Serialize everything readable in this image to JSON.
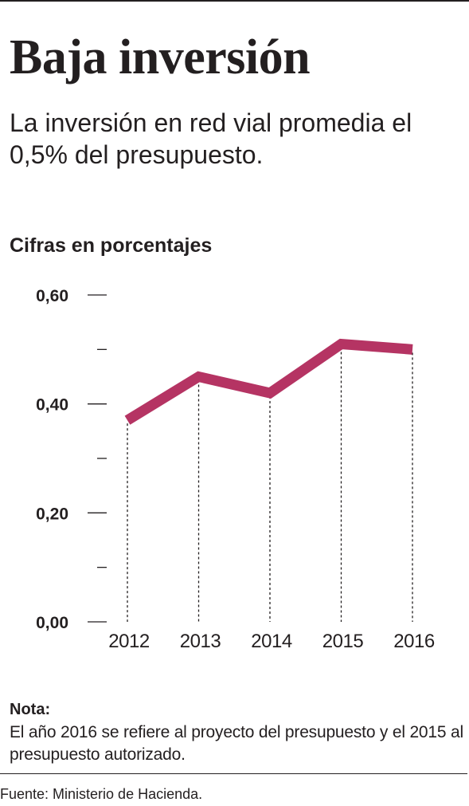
{
  "header": {
    "title": "Baja inversión",
    "subtitle": "La inversión en red vial promedia el 0,5% del presupuesto.",
    "units_label": "Cifras en porcentajes"
  },
  "chart_data": {
    "type": "line",
    "x": [
      "2012",
      "2013",
      "2014",
      "2015",
      "2016"
    ],
    "series": [
      {
        "values": [
          0.37,
          0.45,
          0.42,
          0.51,
          0.5
        ]
      }
    ],
    "ylim": [
      0,
      0.6
    ],
    "yticks_major": [
      "0,00",
      "0,20",
      "0,40",
      "0,60"
    ],
    "yticks_major_values": [
      0,
      0.2,
      0.4,
      0.6
    ],
    "yticks_minor_values": [
      0.1,
      0.3,
      0.5
    ],
    "drop_lines": "dotted",
    "grid": false,
    "legend": "none",
    "line_color": "#b53463"
  },
  "note": {
    "label": "Nota:",
    "text": "El año 2016 se refiere al proyecto del presupuesto y el 2015 al presupuesto autorizado."
  },
  "source": "Fuente: Ministerio de Hacienda."
}
